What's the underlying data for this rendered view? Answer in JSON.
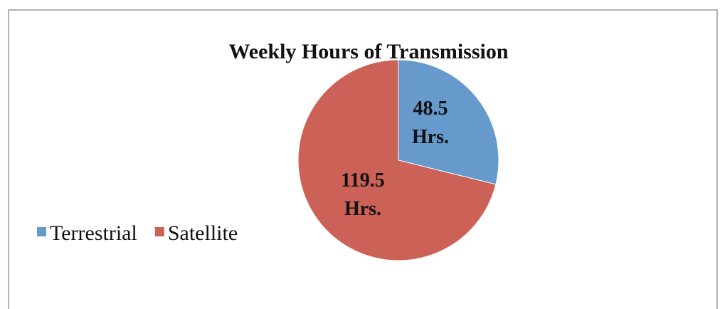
{
  "chart_data": {
    "type": "pie",
    "title": "Weekly Hours of Transmission",
    "categories": [
      "Terrestrial",
      "Satellite"
    ],
    "values": [
      48.5,
      119.5
    ],
    "value_labels": [
      "48.5 Hrs.",
      "119.5 Hrs."
    ],
    "colors": [
      "#6699cc",
      "#cc6158"
    ],
    "legend": "left"
  }
}
